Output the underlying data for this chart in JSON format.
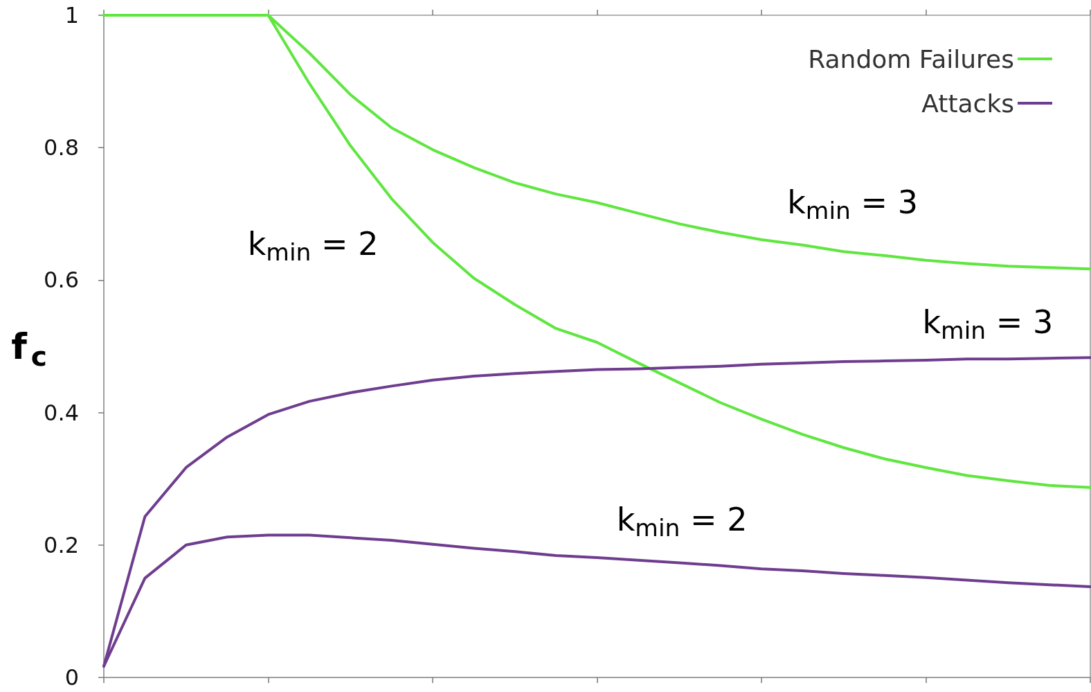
{
  "chart_data": {
    "type": "line",
    "ylabel": "f$_{c}$",
    "categories": [
      null,
      null,
      null,
      null,
      null,
      null,
      null,
      null,
      null,
      null,
      null,
      null,
      null,
      null,
      null,
      null,
      null,
      null,
      null,
      null,
      null,
      null,
      null,
      null,
      null
    ],
    "series": [
      {
        "name": "Random Failures",
        "color": "#5fe63f",
        "values": [
          1,
          1,
          1,
          1,
          1,
          0.897,
          0.803,
          0.723,
          0.657,
          0.603,
          0.563,
          0.527,
          0.506,
          0.475,
          0.445,
          0.415,
          0.39,
          0.367,
          0.347,
          0.33,
          0.317,
          0.305,
          0.297,
          0.29,
          0.287
        ]
      },
      {
        "color": "#5fe63f",
        "values": [
          1,
          1,
          1,
          1,
          1,
          0.943,
          0.88,
          0.83,
          0.797,
          0.77,
          0.747,
          0.73,
          0.717,
          0.701,
          0.685,
          0.672,
          0.661,
          0.653,
          0.643,
          0.637,
          0.63,
          0.625,
          0.621,
          0.619,
          0.617
        ]
      },
      {
        "name": "Attacks",
        "color": "#6f3d8f",
        "values": [
          0.017,
          0.243,
          0.317,
          0.363,
          0.397,
          0.417,
          0.43,
          0.44,
          0.449,
          0.455,
          0.459,
          0.462,
          0.465,
          0.466,
          0.468,
          0.47,
          0.473,
          0.475,
          0.477,
          0.478,
          0.479,
          0.481,
          0.481,
          0.482,
          0.483
        ]
      },
      {
        "color": "#6f3d8f",
        "values": [
          0.017,
          0.15,
          0.2,
          0.212,
          0.215,
          0.215,
          0.211,
          0.207,
          0.201,
          0.195,
          0.19,
          0.184,
          0.181,
          0.177,
          0.173,
          0.169,
          0.164,
          0.161,
          0.157,
          0.154,
          0.151,
          0.147,
          0.143,
          0.14,
          0.137
        ]
      }
    ],
    "ylim": [
      0,
      1
    ],
    "yticks": [
      0,
      0.2,
      0.4,
      0.6,
      0.8,
      1
    ],
    "tick_labels": "y",
    "grid": false,
    "legend": "top right",
    "marker": "none",
    "line_style": "solid",
    "annotations": [
      "k$_{min}$ = 2",
      "k$_{min}$ = 3",
      "k$_{min}$ = 3",
      "k$_{min}$ = 2"
    ]
  }
}
